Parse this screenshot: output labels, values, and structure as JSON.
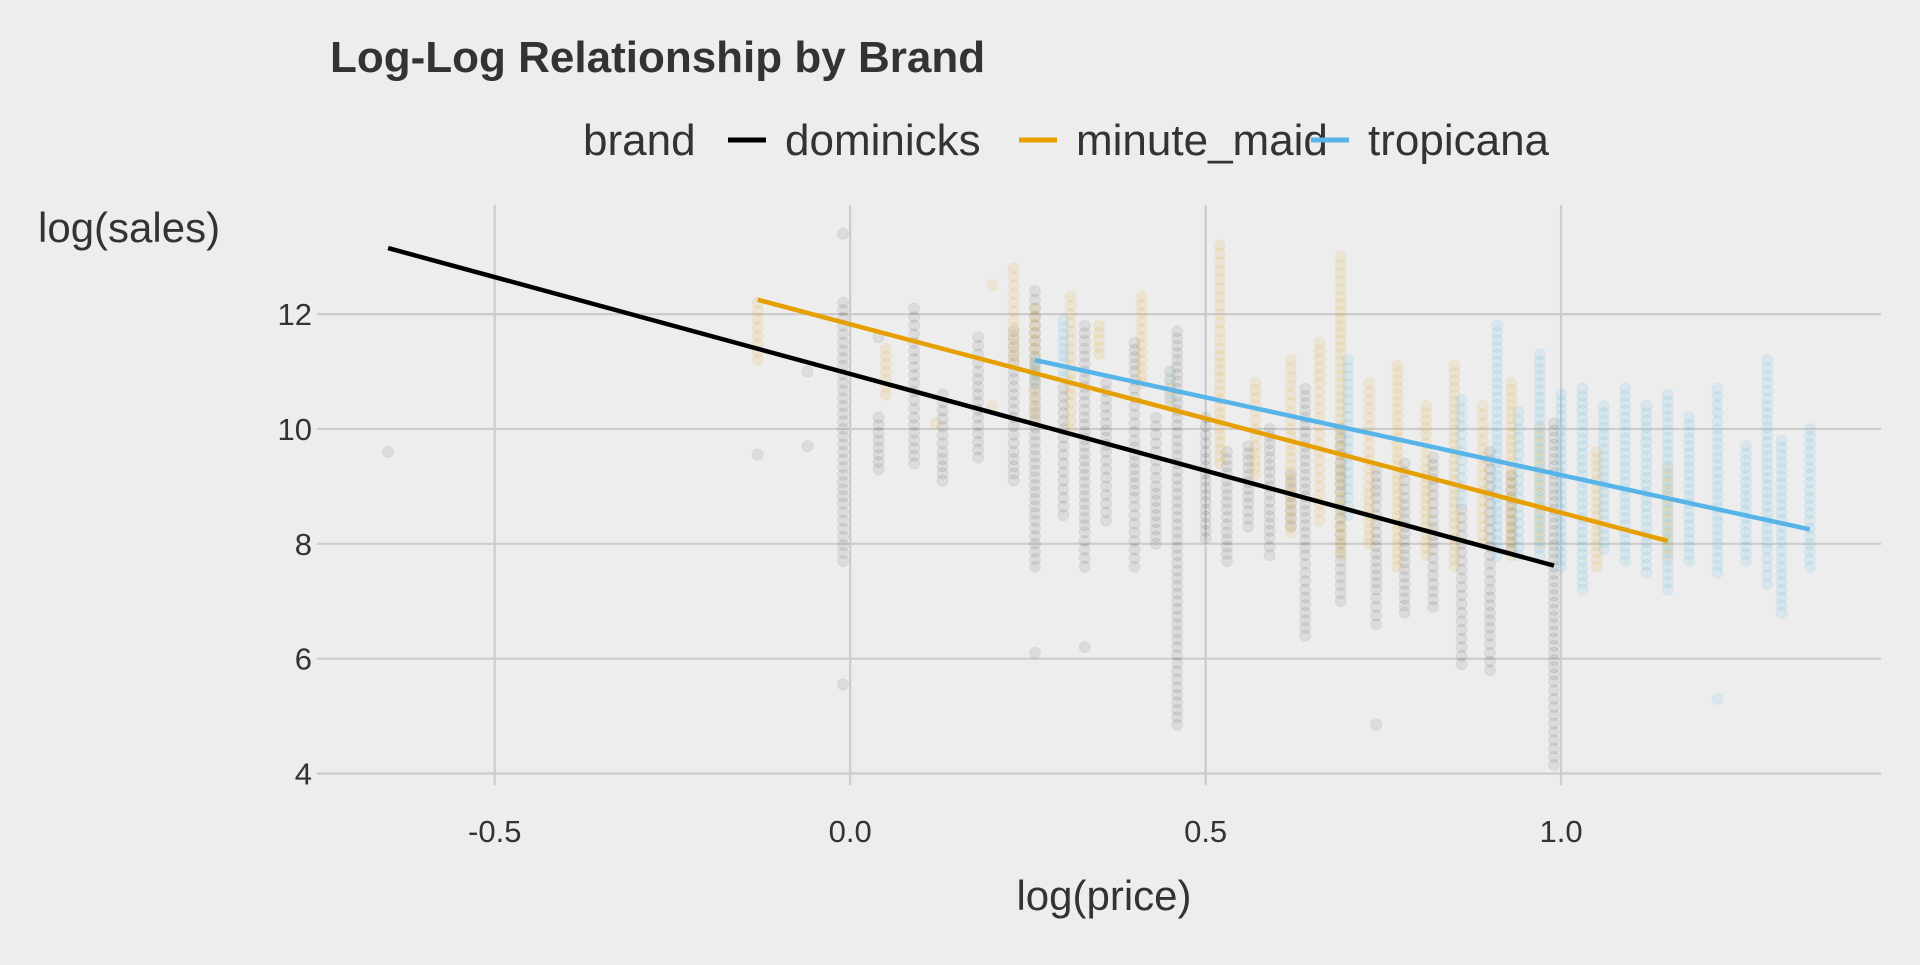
{
  "chart_data": {
    "type": "scatter",
    "title": "Log-Log Relationship by Brand",
    "xlabel": "log(price)",
    "ylabel": "log(sales)",
    "xlim": [
      -0.75,
      1.45
    ],
    "ylim": [
      3.8,
      13.9
    ],
    "grid": true,
    "legend": {
      "title": "brand",
      "placement": "top",
      "entries": [
        "dominicks",
        "minute_maid",
        "tropicana"
      ]
    },
    "x_ticks": [
      {
        "value": -0.5,
        "label": "-0.5"
      },
      {
        "value": 0.0,
        "label": "0.0"
      },
      {
        "value": 0.5,
        "label": "0.5"
      },
      {
        "value": 1.0,
        "label": "1.0"
      }
    ],
    "y_ticks": [
      {
        "value": 4,
        "label": "4"
      },
      {
        "value": 6,
        "label": "6"
      },
      {
        "value": 8,
        "label": "8"
      },
      {
        "value": 10,
        "label": "10"
      },
      {
        "value": 12,
        "label": "12"
      }
    ],
    "series": [
      {
        "name": "dominicks",
        "color": "#000000",
        "points_opacity": 0.07,
        "fit_line": {
          "x": [
            -0.65,
            0.99
          ],
          "y": [
            13.15,
            7.62
          ]
        },
        "point_columns": [
          {
            "x": -0.65,
            "y": [
              9.6
            ]
          },
          {
            "x": -0.13,
            "y": [
              9.55
            ]
          },
          {
            "x": -0.06,
            "y": [
              9.7,
              11.0
            ]
          },
          {
            "x": -0.01,
            "y": [
              12.2,
              11.8,
              11.5,
              11.1,
              10.8,
              10.4,
              10.0,
              9.6,
              9.2,
              8.7,
              8.4,
              7.7,
              5.55,
              13.4
            ]
          },
          {
            "x": 0.04,
            "y": [
              9.3,
              9.8,
              10.2,
              11.6
            ]
          },
          {
            "x": 0.09,
            "y": [
              12.1,
              11.5,
              10.8,
              10.2,
              9.8,
              9.4
            ]
          },
          {
            "x": 0.13,
            "y": [
              10.6,
              9.9,
              9.6,
              9.1
            ]
          },
          {
            "x": 0.18,
            "y": [
              11.6,
              11.0,
              10.2,
              9.5
            ]
          },
          {
            "x": 0.23,
            "y": [
              11.7,
              11.0,
              10.2,
              9.6,
              9.1
            ]
          },
          {
            "x": 0.26,
            "y": [
              12.4,
              11.8,
              11.0,
              10.4,
              9.9,
              9.4,
              8.9,
              8.4,
              7.6,
              6.1
            ]
          },
          {
            "x": 0.3,
            "y": [
              10.7,
              10.0,
              9.4,
              8.8,
              8.5
            ]
          },
          {
            "x": 0.33,
            "y": [
              11.8,
              11.0,
              10.2,
              9.7,
              9.2,
              8.7,
              8.2,
              7.6,
              6.2
            ]
          },
          {
            "x": 0.36,
            "y": [
              10.8,
              10.1,
              9.6,
              9.0,
              8.4
            ]
          },
          {
            "x": 0.4,
            "y": [
              11.5,
              11.0,
              10.4,
              9.8,
              9.3,
              8.8,
              8.2,
              7.6
            ]
          },
          {
            "x": 0.43,
            "y": [
              10.2,
              9.6,
              9.0,
              8.5,
              8.0
            ]
          },
          {
            "x": 0.46,
            "y": [
              11.7,
              11.2,
              10.7,
              10.2,
              9.8,
              9.4,
              9.0,
              8.6,
              8.2,
              7.8,
              7.4,
              7.0,
              6.6,
              6.2,
              5.5,
              4.85
            ]
          },
          {
            "x": 0.5,
            "y": [
              10.2,
              9.6,
              9.1,
              8.6,
              8.1
            ]
          },
          {
            "x": 0.53,
            "y": [
              9.6,
              9.1,
              8.6,
              8.2,
              7.7
            ]
          },
          {
            "x": 0.56,
            "y": [
              9.7,
              9.2,
              8.7,
              8.3
            ]
          },
          {
            "x": 0.59,
            "y": [
              10.0,
              9.5,
              9.0,
              8.6,
              8.1,
              7.8
            ]
          },
          {
            "x": 0.62,
            "y": [
              9.2,
              8.7,
              8.3
            ]
          },
          {
            "x": 0.64,
            "y": [
              10.7,
              10.2,
              9.7,
              9.2,
              8.7,
              8.2,
              7.8,
              7.2,
              6.4
            ]
          },
          {
            "x": 0.69,
            "y": [
              10.0,
              9.4,
              8.9,
              8.3,
              7.7,
              7.0
            ]
          },
          {
            "x": 0.74,
            "y": [
              9.3,
              8.8,
              8.2,
              7.7,
              7.2,
              6.6,
              4.85
            ]
          },
          {
            "x": 0.78,
            "y": [
              9.4,
              8.8,
              8.3,
              7.8,
              7.3,
              6.8
            ]
          },
          {
            "x": 0.82,
            "y": [
              9.5,
              9.0,
              8.4,
              7.9,
              7.3,
              6.9
            ]
          },
          {
            "x": 0.86,
            "y": [
              8.6,
              8.0,
              7.4,
              6.8,
              5.9
            ]
          },
          {
            "x": 0.9,
            "y": [
              9.6,
              9.0,
              8.4,
              7.8,
              7.2,
              6.4,
              5.8
            ]
          },
          {
            "x": 0.93,
            "y": [
              9.2,
              8.4,
              7.9
            ]
          },
          {
            "x": 0.99,
            "y": [
              10.1,
              9.6,
              9.1,
              8.6,
              8.1,
              7.6,
              7.1,
              6.6,
              6.1,
              5.6,
              5.3,
              4.15
            ]
          }
        ]
      },
      {
        "name": "minute_maid",
        "color": "#E69F00",
        "points_opacity": 0.1,
        "fit_line": {
          "x": [
            -0.13,
            1.15
          ],
          "y": [
            12.25,
            8.05
          ]
        },
        "point_columns": [
          {
            "x": -0.13,
            "y": [
              11.2,
              12.2
            ]
          },
          {
            "x": 0.05,
            "y": [
              10.6,
              11.4
            ]
          },
          {
            "x": 0.12,
            "y": [
              10.1
            ]
          },
          {
            "x": 0.2,
            "y": [
              10.4,
              12.5
            ]
          },
          {
            "x": 0.23,
            "y": [
              12.8,
              11.9,
              11.2
            ]
          },
          {
            "x": 0.26,
            "y": [
              12.1,
              11.4,
              10.8,
              10.2
            ]
          },
          {
            "x": 0.31,
            "y": [
              12.3,
              11.7,
              11.1,
              10.6,
              10.0
            ]
          },
          {
            "x": 0.35,
            "y": [
              11.8,
              11.3
            ]
          },
          {
            "x": 0.41,
            "y": [
              12.3,
              11.6,
              10.8
            ]
          },
          {
            "x": 0.45,
            "y": [
              11.0,
              10.4
            ]
          },
          {
            "x": 0.52,
            "y": [
              13.2,
              12.6,
              12.0,
              11.4,
              10.9,
              10.4,
              9.9,
              9.4
            ]
          },
          {
            "x": 0.57,
            "y": [
              10.8,
              10.3,
              9.7,
              9.2
            ]
          },
          {
            "x": 0.62,
            "y": [
              11.2,
              10.6,
              10.0,
              9.5,
              9.0,
              8.6,
              8.2
            ]
          },
          {
            "x": 0.66,
            "y": [
              11.5,
              10.8,
              10.2,
              9.6,
              9.0,
              8.4
            ]
          },
          {
            "x": 0.69,
            "y": [
              13.0,
              12.3,
              11.8,
              11.3,
              10.8,
              10.3,
              9.8,
              9.3,
              8.8,
              8.3,
              7.8
            ]
          },
          {
            "x": 0.73,
            "y": [
              10.8,
              10.2,
              9.6,
              9.0,
              8.5,
              8.0
            ]
          },
          {
            "x": 0.77,
            "y": [
              11.1,
              10.6,
              10.1,
              9.6,
              9.1,
              8.6,
              8.1,
              7.6
            ]
          },
          {
            "x": 0.81,
            "y": [
              10.4,
              9.9,
              9.3,
              8.8,
              8.3,
              7.8
            ]
          },
          {
            "x": 0.85,
            "y": [
              11.1,
              10.6,
              10.1,
              9.6,
              9.1,
              8.6,
              8.1,
              7.6
            ]
          },
          {
            "x": 0.89,
            "y": [
              10.4,
              9.8,
              9.2,
              8.6,
              8.0
            ]
          },
          {
            "x": 0.93,
            "y": [
              10.8,
              10.3,
              9.8,
              9.3,
              8.8,
              8.3,
              7.8
            ]
          },
          {
            "x": 0.97,
            "y": [
              10.0,
              9.5,
              9.0,
              8.5,
              8.0
            ]
          },
          {
            "x": 1.05,
            "y": [
              9.6,
              9.1,
              8.6,
              8.1,
              7.6
            ]
          },
          {
            "x": 1.15,
            "y": [
              9.3,
              8.8,
              8.3,
              7.8
            ]
          }
        ]
      },
      {
        "name": "tropicana",
        "color": "#56B4E9",
        "points_opacity": 0.12,
        "fit_line": {
          "x": [
            0.26,
            1.35
          ],
          "y": [
            11.2,
            8.25
          ]
        },
        "point_columns": [
          {
            "x": 0.26,
            "y": [
              11.2,
              10.8
            ]
          },
          {
            "x": 0.3,
            "y": [
              11.9,
              11.4,
              10.9
            ]
          },
          {
            "x": 0.45,
            "y": [
              11.0,
              10.5
            ]
          },
          {
            "x": 0.7,
            "y": [
              11.2,
              10.5,
              9.8,
              9.1,
              8.5
            ]
          },
          {
            "x": 0.86,
            "y": [
              10.5,
              9.9,
              9.3,
              8.7
            ]
          },
          {
            "x": 0.91,
            "y": [
              11.8,
              11.3,
              10.8,
              10.3,
              9.8,
              9.3,
              8.8,
              8.3,
              7.8
            ]
          },
          {
            "x": 0.94,
            "y": [
              10.3,
              9.7,
              9.1,
              8.5,
              7.8
            ]
          },
          {
            "x": 0.97,
            "y": [
              11.3,
              10.8,
              10.3,
              9.8,
              9.3,
              8.8,
              8.3,
              7.8
            ]
          },
          {
            "x": 1.0,
            "y": [
              10.6,
              10.1,
              9.6,
              9.1,
              8.6,
              8.1,
              7.6
            ]
          },
          {
            "x": 1.03,
            "y": [
              10.7,
              10.2,
              9.7,
              9.2,
              8.7,
              8.2,
              7.7,
              7.2
            ]
          },
          {
            "x": 1.06,
            "y": [
              10.4,
              9.9,
              9.4,
              8.9,
              8.4,
              7.9
            ]
          },
          {
            "x": 1.09,
            "y": [
              10.7,
              10.2,
              9.7,
              9.2,
              8.7,
              8.2,
              7.7
            ]
          },
          {
            "x": 1.12,
            "y": [
              10.4,
              9.9,
              9.4,
              8.9,
              8.4,
              7.9,
              7.5
            ]
          },
          {
            "x": 1.15,
            "y": [
              10.6,
              10.1,
              9.6,
              9.1,
              8.6,
              8.1,
              7.6,
              7.2
            ]
          },
          {
            "x": 1.18,
            "y": [
              10.2,
              9.7,
              9.2,
              8.7,
              8.2,
              7.7
            ]
          },
          {
            "x": 1.22,
            "y": [
              10.7,
              10.0,
              9.5,
              9.0,
              8.5,
              8.0,
              7.5,
              5.3
            ]
          },
          {
            "x": 1.26,
            "y": [
              9.7,
              9.2,
              8.7,
              8.2,
              7.7
            ]
          },
          {
            "x": 1.29,
            "y": [
              11.2,
              10.4,
              9.9,
              9.4,
              8.9,
              8.4,
              7.9,
              7.3
            ]
          },
          {
            "x": 1.31,
            "y": [
              9.8,
              9.3,
              8.8,
              8.3,
              7.6,
              6.8
            ]
          },
          {
            "x": 1.35,
            "y": [
              10.0,
              9.6,
              9.2,
              8.8,
              8.4,
              8.0,
              7.6
            ]
          }
        ]
      }
    ]
  }
}
